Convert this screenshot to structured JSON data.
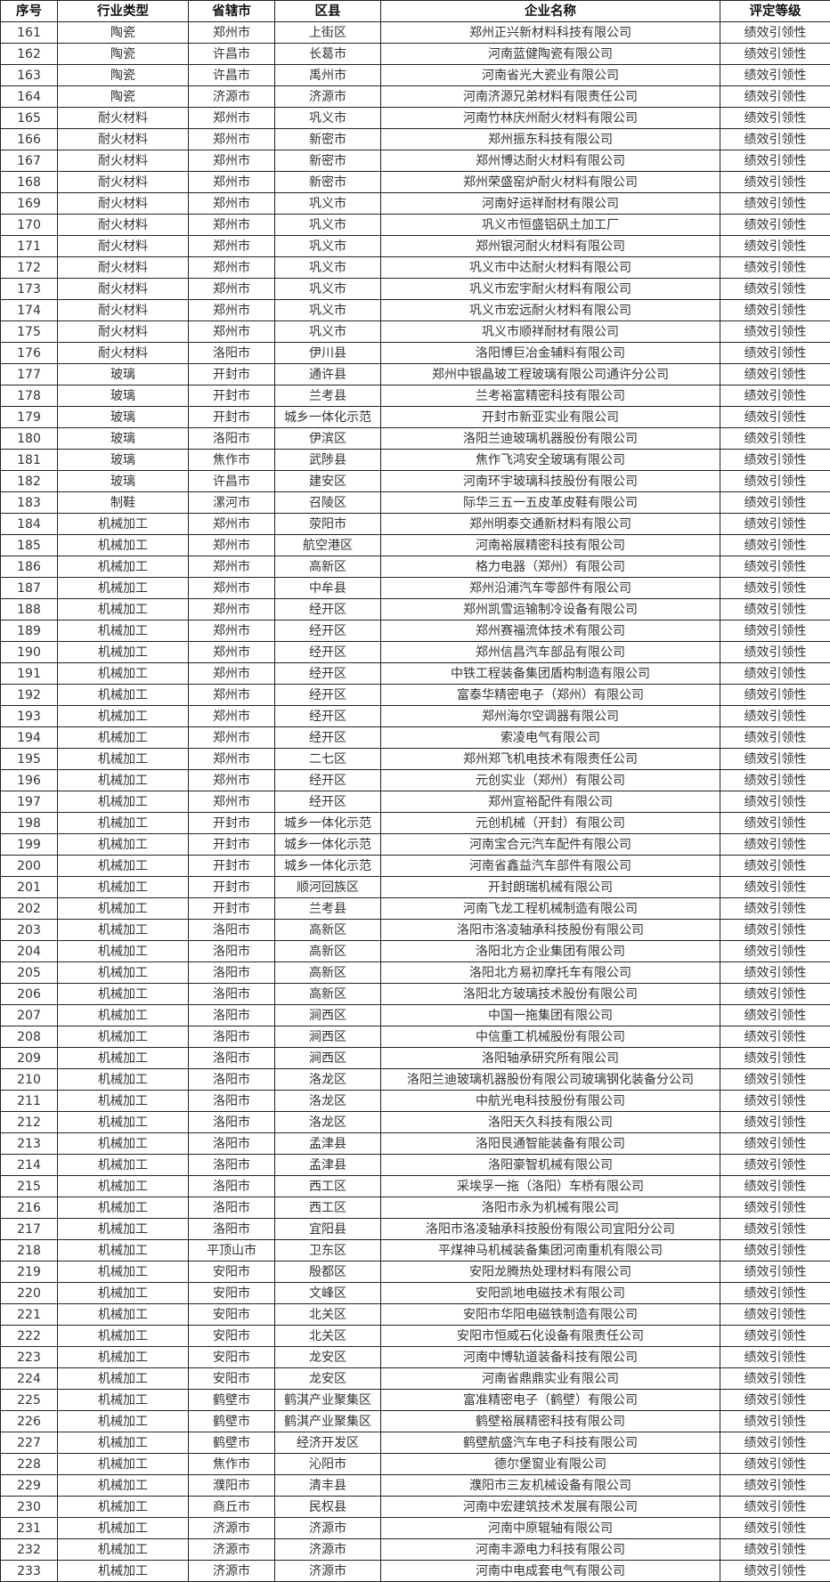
{
  "table": {
    "headers": [
      "序号",
      "行业类型",
      "省辖市",
      "区县",
      "企业名称",
      "评定等级"
    ],
    "rows": [
      [
        "161",
        "陶瓷",
        "郑州市",
        "上街区",
        "郑州正兴新材料科技有限公司",
        "绩效引领性"
      ],
      [
        "162",
        "陶瓷",
        "许昌市",
        "长葛市",
        "河南蓝健陶瓷有限公司",
        "绩效引领性"
      ],
      [
        "163",
        "陶瓷",
        "许昌市",
        "禹州市",
        "河南省光大瓷业有限公司",
        "绩效引领性"
      ],
      [
        "164",
        "陶瓷",
        "济源市",
        "济源市",
        "河南济源兄弟材料有限责任公司",
        "绩效引领性"
      ],
      [
        "165",
        "耐火材料",
        "郑州市",
        "巩义市",
        "河南竹林庆州耐火材料有限公司",
        "绩效引领性"
      ],
      [
        "166",
        "耐火材料",
        "郑州市",
        "新密市",
        "郑州振东科技有限公司",
        "绩效引领性"
      ],
      [
        "167",
        "耐火材料",
        "郑州市",
        "新密市",
        "郑州博达耐火材料有限公司",
        "绩效引领性"
      ],
      [
        "168",
        "耐火材料",
        "郑州市",
        "新密市",
        "郑州荣盛窑炉耐火材料有限公司",
        "绩效引领性"
      ],
      [
        "169",
        "耐火材料",
        "郑州市",
        "巩义市",
        "河南好运祥耐材有限公司",
        "绩效引领性"
      ],
      [
        "170",
        "耐火材料",
        "郑州市",
        "巩义市",
        "巩义市恒盛铝矾土加工厂",
        "绩效引领性"
      ],
      [
        "171",
        "耐火材料",
        "郑州市",
        "巩义市",
        "郑州银河耐火材料有限公司",
        "绩效引领性"
      ],
      [
        "172",
        "耐火材料",
        "郑州市",
        "巩义市",
        "巩义市中达耐火材料有限公司",
        "绩效引领性"
      ],
      [
        "173",
        "耐火材料",
        "郑州市",
        "巩义市",
        "巩义市宏宇耐火材料有限公司",
        "绩效引领性"
      ],
      [
        "174",
        "耐火材料",
        "郑州市",
        "巩义市",
        "巩义市宏远耐火材料有限公司",
        "绩效引领性"
      ],
      [
        "175",
        "耐火材料",
        "郑州市",
        "巩义市",
        "巩义市顺祥耐材有限公司",
        "绩效引领性"
      ],
      [
        "176",
        "耐火材料",
        "洛阳市",
        "伊川县",
        "洛阳博巨冶金辅料有限公司",
        "绩效引领性"
      ],
      [
        "177",
        "玻璃",
        "开封市",
        "通许县",
        "郑州中银晶玻工程玻璃有限公司通许分公司",
        "绩效引领性"
      ],
      [
        "178",
        "玻璃",
        "开封市",
        "兰考县",
        "兰考裕富精密科技有限公司",
        "绩效引领性"
      ],
      [
        "179",
        "玻璃",
        "开封市",
        "城乡一体化示范",
        "开封市新亚实业有限公司",
        "绩效引领性"
      ],
      [
        "180",
        "玻璃",
        "洛阳市",
        "伊滨区",
        "洛阳兰迪玻璃机器股份有限公司",
        "绩效引领性"
      ],
      [
        "181",
        "玻璃",
        "焦作市",
        "武陟县",
        "焦作飞鸿安全玻璃有限公司",
        "绩效引领性"
      ],
      [
        "182",
        "玻璃",
        "许昌市",
        "建安区",
        "河南环宇玻璃科技股份有限公司",
        "绩效引领性"
      ],
      [
        "183",
        "制鞋",
        "漯河市",
        "召陵区",
        "际华三五一五皮革皮鞋有限公司",
        "绩效引领性"
      ],
      [
        "184",
        "机械加工",
        "郑州市",
        "荥阳市",
        "郑州明泰交通新材料有限公司",
        "绩效引领性"
      ],
      [
        "185",
        "机械加工",
        "郑州市",
        "航空港区",
        "河南裕展精密科技有限公司",
        "绩效引领性"
      ],
      [
        "186",
        "机械加工",
        "郑州市",
        "高新区",
        "格力电器（郑州）有限公司",
        "绩效引领性"
      ],
      [
        "187",
        "机械加工",
        "郑州市",
        "中牟县",
        "郑州沿浦汽车零部件有限公司",
        "绩效引领性"
      ],
      [
        "188",
        "机械加工",
        "郑州市",
        "经开区",
        "郑州凯雪运输制冷设备有限公司",
        "绩效引领性"
      ],
      [
        "189",
        "机械加工",
        "郑州市",
        "经开区",
        "郑州赛福流体技术有限公司",
        "绩效引领性"
      ],
      [
        "190",
        "机械加工",
        "郑州市",
        "经开区",
        "郑州信昌汽车部品有限公司",
        "绩效引领性"
      ],
      [
        "191",
        "机械加工",
        "郑州市",
        "经开区",
        "中铁工程装备集团盾构制造有限公司",
        "绩效引领性"
      ],
      [
        "192",
        "机械加工",
        "郑州市",
        "经开区",
        "富泰华精密电子（郑州）有限公司",
        "绩效引领性"
      ],
      [
        "193",
        "机械加工",
        "郑州市",
        "经开区",
        "郑州海尔空调器有限公司",
        "绩效引领性"
      ],
      [
        "194",
        "机械加工",
        "郑州市",
        "经开区",
        "索凌电气有限公司",
        "绩效引领性"
      ],
      [
        "195",
        "机械加工",
        "郑州市",
        "二七区",
        "郑州郑飞机电技术有限责任公司",
        "绩效引领性"
      ],
      [
        "196",
        "机械加工",
        "郑州市",
        "经开区",
        "元创实业（郑州）有限公司",
        "绩效引领性"
      ],
      [
        "197",
        "机械加工",
        "郑州市",
        "经开区",
        "郑州宣裕配件有限公司",
        "绩效引领性"
      ],
      [
        "198",
        "机械加工",
        "开封市",
        "城乡一体化示范",
        "元创机械（开封）有限公司",
        "绩效引领性"
      ],
      [
        "199",
        "机械加工",
        "开封市",
        "城乡一体化示范",
        "河南宝合元汽车配件有限公司",
        "绩效引领性"
      ],
      [
        "200",
        "机械加工",
        "开封市",
        "城乡一体化示范",
        "河南省鑫益汽车部件有限公司",
        "绩效引领性"
      ],
      [
        "201",
        "机械加工",
        "开封市",
        "顺河回族区",
        "开封朗瑞机械有限公司",
        "绩效引领性"
      ],
      [
        "202",
        "机械加工",
        "开封市",
        "兰考县",
        "河南飞龙工程机械制造有限公司",
        "绩效引领性"
      ],
      [
        "203",
        "机械加工",
        "洛阳市",
        "高新区",
        "洛阳市洛凌轴承科技股份有限公司",
        "绩效引领性"
      ],
      [
        "204",
        "机械加工",
        "洛阳市",
        "高新区",
        "洛阳北方企业集团有限公司",
        "绩效引领性"
      ],
      [
        "205",
        "机械加工",
        "洛阳市",
        "高新区",
        "洛阳北方易初摩托车有限公司",
        "绩效引领性"
      ],
      [
        "206",
        "机械加工",
        "洛阳市",
        "高新区",
        "洛阳北方玻璃技术股份有限公司",
        "绩效引领性"
      ],
      [
        "207",
        "机械加工",
        "洛阳市",
        "涧西区",
        "中国一拖集团有限公司",
        "绩效引领性"
      ],
      [
        "208",
        "机械加工",
        "洛阳市",
        "涧西区",
        "中信重工机械股份有限公司",
        "绩效引领性"
      ],
      [
        "209",
        "机械加工",
        "洛阳市",
        "涧西区",
        "洛阳轴承研究所有限公司",
        "绩效引领性"
      ],
      [
        "210",
        "机械加工",
        "洛阳市",
        "洛龙区",
        "洛阳兰迪玻璃机器股份有限公司玻璃钢化装备分公司",
        "绩效引领性"
      ],
      [
        "211",
        "机械加工",
        "洛阳市",
        "洛龙区",
        "中航光电科技股份有限公司",
        "绩效引领性"
      ],
      [
        "212",
        "机械加工",
        "洛阳市",
        "洛龙区",
        "洛阳天久科技有限公司",
        "绩效引领性"
      ],
      [
        "213",
        "机械加工",
        "洛阳市",
        "孟津县",
        "洛阳艮通智能装备有限公司",
        "绩效引领性"
      ],
      [
        "214",
        "机械加工",
        "洛阳市",
        "孟津县",
        "洛阳豪智机械有限公司",
        "绩效引领性"
      ],
      [
        "215",
        "机械加工",
        "洛阳市",
        "西工区",
        "采埃孚一拖（洛阳）车桥有限公司",
        "绩效引领性"
      ],
      [
        "216",
        "机械加工",
        "洛阳市",
        "西工区",
        "洛阳市永为机械有限公司",
        "绩效引领性"
      ],
      [
        "217",
        "机械加工",
        "洛阳市",
        "宜阳县",
        "洛阳市洛凌轴承科技股份有限公司宜阳分公司",
        "绩效引领性"
      ],
      [
        "218",
        "机械加工",
        "平顶山市",
        "卫东区",
        "平煤神马机械装备集团河南重机有限公司",
        "绩效引领性"
      ],
      [
        "219",
        "机械加工",
        "安阳市",
        "殷都区",
        "安阳龙腾热处理材料有限公司",
        "绩效引领性"
      ],
      [
        "220",
        "机械加工",
        "安阳市",
        "文峰区",
        "安阳凯地电磁技术有限公司",
        "绩效引领性"
      ],
      [
        "221",
        "机械加工",
        "安阳市",
        "北关区",
        "安阳市华阳电磁铁制造有限公司",
        "绩效引领性"
      ],
      [
        "222",
        "机械加工",
        "安阳市",
        "北关区",
        "安阳市恒威石化设备有限责任公司",
        "绩效引领性"
      ],
      [
        "223",
        "机械加工",
        "安阳市",
        "龙安区",
        "河南中博轨道装备科技有限公司",
        "绩效引领性"
      ],
      [
        "224",
        "机械加工",
        "安阳市",
        "龙安区",
        "河南省鼎鼎实业有限公司",
        "绩效引领性"
      ],
      [
        "225",
        "机械加工",
        "鹤壁市",
        "鹤淇产业聚集区",
        "富准精密电子（鹤壁）有限公司",
        "绩效引领性"
      ],
      [
        "226",
        "机械加工",
        "鹤壁市",
        "鹤淇产业聚集区",
        "鹤壁裕展精密科技有限公司",
        "绩效引领性"
      ],
      [
        "227",
        "机械加工",
        "鹤壁市",
        "经济开发区",
        "鹤壁航盛汽车电子科技有限公司",
        "绩效引领性"
      ],
      [
        "228",
        "机械加工",
        "焦作市",
        "沁阳市",
        "德尔堡窗业有限公司",
        "绩效引领性"
      ],
      [
        "229",
        "机械加工",
        "濮阳市",
        "清丰县",
        "濮阳市三友机械设备有限公司",
        "绩效引领性"
      ],
      [
        "230",
        "机械加工",
        "商丘市",
        "民权县",
        "河南中宏建筑技术发展有限公司",
        "绩效引领性"
      ],
      [
        "231",
        "机械加工",
        "济源市",
        "济源市",
        "河南中原辊轴有限公司",
        "绩效引领性"
      ],
      [
        "232",
        "机械加工",
        "济源市",
        "济源市",
        "河南丰源电力科技有限公司",
        "绩效引领性"
      ],
      [
        "233",
        "机械加工",
        "济源市",
        "济源市",
        "河南中电成套电气有限公司",
        "绩效引领性"
      ]
    ]
  }
}
